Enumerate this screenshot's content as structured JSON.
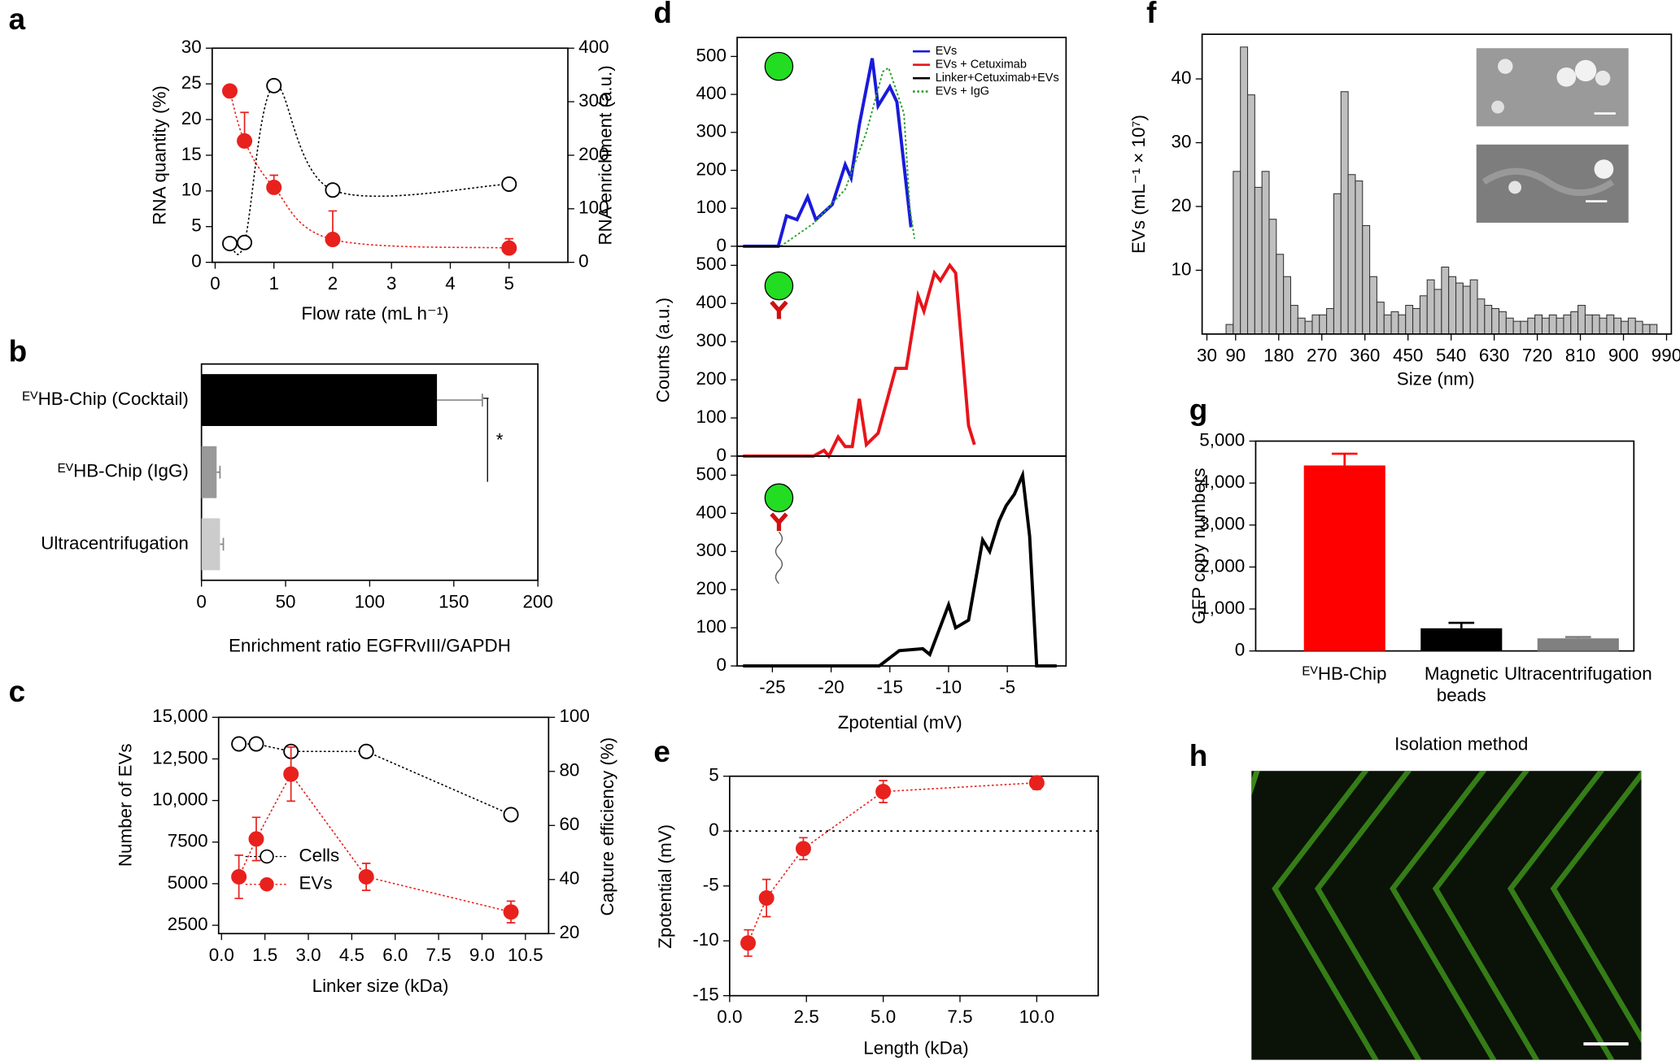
{
  "chart_data": [
    {
      "type": "line",
      "label": "a",
      "smooth": true,
      "x": [
        0.25,
        0.5,
        1,
        2,
        5
      ],
      "xlim": [
        -0.05,
        6
      ],
      "xticks": [
        0,
        1,
        2,
        3,
        4,
        5
      ],
      "ylim": [
        0,
        30
      ],
      "yticks": [
        0,
        5,
        10,
        15,
        20,
        25,
        30
      ],
      "y2lim": [
        0,
        400
      ],
      "y2ticks": [
        0,
        100,
        200,
        300,
        400
      ],
      "xlabel": "Flow rate (mL h⁻¹)",
      "ylabel": "RNA quantity (%)",
      "y2label": "RNA enrichment (a.u.)",
      "series": [
        {
          "color": "#e8211d",
          "marker": "filled",
          "values": [
            24,
            17,
            10.5,
            3.2,
            2
          ],
          "errors": [
            null,
            4,
            1.7,
            4,
            1.3
          ],
          "error_direction": "up"
        },
        {
          "color": "#000000",
          "marker": "open",
          "axis": "y2",
          "values": [
            35,
            37,
            330,
            135,
            146
          ]
        }
      ]
    },
    {
      "type": "hbar",
      "label": "b",
      "categories": [
        "ᴱⱽHB-Chip (Cocktail)",
        "ᴱⱽHB-Chip (IgG)",
        "Ultracentrifugation"
      ],
      "values": [
        140,
        9,
        11
      ],
      "errors": [
        27,
        2,
        2
      ],
      "colors": [
        "#000000",
        "#999999",
        "#cccccc"
      ],
      "xlim": [
        0,
        200
      ],
      "xticks": [
        0,
        50,
        100,
        150,
        200
      ],
      "xlabel": "Enrichment ratio EGFRvIII/GAPDH",
      "significance": "*"
    },
    {
      "type": "line",
      "label": "c",
      "smooth": false,
      "legend": "lower left",
      "x": [
        0.6,
        1.2,
        2.4,
        5,
        10
      ],
      "xlim": [
        -0.1,
        11.3
      ],
      "xticks": [
        {
          "value": 0,
          "label": "0.0"
        },
        1.5,
        {
          "value": 3,
          "label": "3.0"
        },
        4.5,
        {
          "value": 6,
          "label": "6.0"
        },
        7.5,
        {
          "value": 9,
          "label": "9.0"
        },
        10.5
      ],
      "ylim": [
        2000,
        15000
      ],
      "yticks": [
        2500,
        5000,
        7500,
        {
          "value": 10000,
          "label": "10,000"
        },
        {
          "value": 12500,
          "label": "12,500"
        },
        {
          "value": 15000,
          "label": "15,000"
        }
      ],
      "y2lim": [
        20,
        100
      ],
      "y2ticks": [
        20,
        40,
        60,
        80,
        100
      ],
      "xlabel": "Linker size (kDa)",
      "ylabel": "Number of EVs",
      "y2label": "Capture efficiency (%)",
      "series": [
        {
          "name": "Cells",
          "color": "#000000",
          "marker": "open",
          "values": [
            13400,
            13400,
            12950,
            12950,
            9150
          ]
        },
        {
          "name": "EVs",
          "color": "#e8211d",
          "marker": "filled",
          "axis": "y2",
          "values": [
            41,
            55,
            79,
            41,
            28
          ],
          "errors": [
            8,
            8,
            10,
            5,
            4
          ]
        }
      ]
    },
    {
      "type": "lines",
      "label": "d",
      "xlim": [
        -28,
        0
      ],
      "xticks": [
        -25,
        -20,
        -15,
        -10,
        -5
      ],
      "ylim": [
        0,
        550
      ],
      "yticks": [
        0,
        100,
        200,
        300,
        400,
        500
      ],
      "xlabel": "Zpotential (mV)",
      "ylabel": "Counts (a.u.)",
      "panels": [
        {
          "series": [
            {
              "name": "EVs",
              "color": "#1a1adb",
              "style": "solid",
              "x": [
                -27.5,
                -24.5,
                -23.8,
                -22.9,
                -22,
                -21.3,
                -19.9,
                -18.8,
                -18.3,
                -17.6,
                -17.1,
                -16.5,
                -16,
                -15,
                -14.4,
                -13.2
              ],
              "values": [
                0,
                0,
                80,
                70,
                130,
                70,
                110,
                215,
                180,
                320,
                400,
                495,
                370,
                420,
                380,
                50
              ]
            },
            {
              "name": "EVs + IgG",
              "color": "#2ca02c",
              "style": "dotted",
              "x": [
                -24.3,
                -21.5,
                -18.8,
                -17,
                -15.6,
                -15.1,
                -13.8,
                -13.3,
                -12.9
              ],
              "values": [
                0,
                60,
                150,
                300,
                460,
                470,
                350,
                100,
                20
              ]
            }
          ]
        },
        {
          "series": [
            {
              "name": "EVs + Cetuximab",
              "color": "#e8141b",
              "style": "solid",
              "x": [
                -27.5,
                -21.5,
                -20.6,
                -20.2,
                -19.4,
                -18.8,
                -18.2,
                -17.6,
                -17,
                -16,
                -14.5,
                -13.6,
                -12.6,
                -12.1,
                -11.2,
                -10.7,
                -9.9,
                -9.4,
                -8.3,
                -7.8
              ],
              "values": [
                0,
                0,
                15,
                0,
                50,
                25,
                25,
                150,
                30,
                60,
                230,
                230,
                420,
                380,
                480,
                460,
                500,
                480,
                80,
                30
              ]
            }
          ]
        },
        {
          "series": [
            {
              "name": "Linker+Cetuximab+EVs",
              "color": "#000000",
              "style": "solid",
              "x": [
                -27.5,
                -15.9,
                -14.2,
                -12.2,
                -11.6,
                -10,
                -9.4,
                -8.3,
                -7.1,
                -6.5,
                -5.7,
                -5.1,
                -4.4,
                -3.7,
                -3.1,
                -2.5,
                -0.8
              ],
              "values": [
                0,
                0,
                40,
                45,
                30,
                160,
                100,
                120,
                330,
                300,
                380,
                420,
                450,
                500,
                340,
                0,
                0
              ]
            }
          ]
        }
      ]
    },
    {
      "type": "line",
      "label": "e",
      "smooth": false,
      "x": [
        0.6,
        1.2,
        2.4,
        5,
        10
      ],
      "xlim": [
        0,
        12
      ],
      "xticks": [
        {
          "value": 0,
          "label": "0.0"
        },
        2.5,
        {
          "value": 5,
          "label": "5.0"
        },
        7.5,
        {
          "value": 10,
          "label": "10.0"
        }
      ],
      "ylim": [
        -15,
        5
      ],
      "yticks": [
        -15,
        -10,
        -5,
        0,
        5
      ],
      "hline": 0,
      "xlabel": "Length (kDa)",
      "ylabel": "Zpotential (mV)",
      "series": [
        {
          "color": "#e8211d",
          "marker": "filled",
          "values": [
            -10.2,
            -6.1,
            -1.6,
            3.6,
            4.4
          ],
          "errors": [
            1.2,
            1.7,
            1,
            1,
            0.6
          ]
        }
      ]
    },
    {
      "type": "histogram",
      "label": "f",
      "color": "#bfbfbf",
      "bins": [
        70,
        85,
        100,
        115,
        130,
        145,
        160,
        175,
        190,
        205,
        220,
        235,
        250,
        265,
        280,
        295,
        310,
        325,
        340,
        355,
        370,
        385,
        400,
        415,
        430,
        445,
        460,
        475,
        490,
        505,
        520,
        535,
        550,
        565,
        580,
        595,
        610,
        625,
        640,
        655,
        670,
        685,
        700,
        715,
        730,
        745,
        760,
        775,
        790,
        805,
        820,
        835,
        850,
        865,
        880,
        895,
        910,
        925,
        940,
        955,
        970
      ],
      "counts": [
        1.5,
        25.5,
        45,
        37.5,
        23,
        25.5,
        18,
        12.5,
        9,
        4.5,
        2.5,
        2,
        3,
        3,
        4,
        22,
        38,
        25,
        24,
        17,
        9,
        5,
        3,
        3.5,
        3,
        4.5,
        4,
        6,
        8.5,
        7,
        10.5,
        9,
        8,
        7.5,
        8.5,
        5.5,
        4.5,
        4,
        3.5,
        2.5,
        2,
        2,
        2.5,
        3,
        2.5,
        3,
        2.5,
        3,
        3.5,
        4.5,
        3,
        3,
        2.5,
        3,
        2.5,
        2,
        2.5,
        2,
        1.5,
        1.5
      ],
      "xlim": [
        20,
        1000
      ],
      "xticks": [
        30,
        90,
        180,
        270,
        360,
        450,
        540,
        630,
        720,
        810,
        900,
        990
      ],
      "ylim": [
        0,
        47
      ],
      "yticks": [
        10,
        20,
        30,
        40
      ],
      "xlabel": "Size (nm)",
      "ylabel": "EVs (mL⁻¹ × 10⁷)"
    },
    {
      "type": "bar",
      "label": "g",
      "categories": [
        "ᴱⱽHB-Chip",
        "Magnetic beads",
        "Ultracentrifugation"
      ],
      "values": [
        4420,
        540,
        300
      ],
      "errors": [
        280,
        130,
        30
      ],
      "colors": [
        "#ff0000",
        "#000000",
        "#808080"
      ],
      "ylim": [
        0,
        5000
      ],
      "yticks": [
        0,
        {
          "value": 1000,
          "label": "1,000"
        },
        {
          "value": 2000,
          "label": "2,000"
        },
        {
          "value": 3000,
          "label": "3,000"
        },
        {
          "value": 4000,
          "label": "4,000"
        },
        {
          "value": 5000,
          "label": "5,000"
        }
      ],
      "xlabel": "Isolation method",
      "ylabel": "GFP copy numbers"
    },
    {
      "type": "image",
      "label": "h"
    }
  ]
}
